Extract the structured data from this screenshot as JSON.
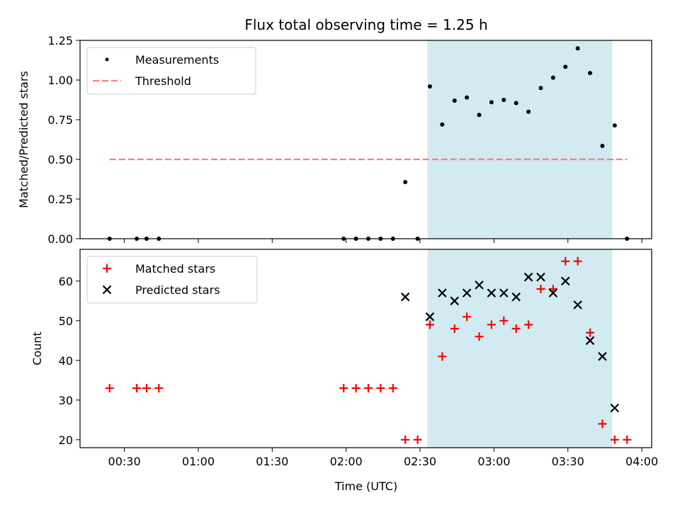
{
  "chart_data": [
    {
      "type": "scatter",
      "title": "Flux total observing time = 1.25 h",
      "xlabel": "",
      "ylabel": "Matched/Predicted stars",
      "ylim": [
        0,
        1.25
      ],
      "yticks": [
        "0.00",
        "0.25",
        "0.50",
        "0.75",
        "1.00",
        "1.25"
      ],
      "shaded_span": [
        "02:33",
        "03:48"
      ],
      "shade_color": "#add8e6",
      "legend_position": "upper-left",
      "series": [
        {
          "name": "Measurements",
          "marker": "dot",
          "color": "#000000",
          "points": [
            [
              "00:24",
              0
            ],
            [
              "00:35",
              0
            ],
            [
              "00:39",
              0
            ],
            [
              "00:44",
              0
            ],
            [
              "01:59",
              0
            ],
            [
              "02:04",
              0
            ],
            [
              "02:09",
              0
            ],
            [
              "02:14",
              0
            ],
            [
              "02:19",
              0
            ],
            [
              "02:24",
              0.357
            ],
            [
              "02:29",
              0
            ],
            [
              "02:34",
              0.96
            ],
            [
              "02:39",
              0.72
            ],
            [
              "02:44",
              0.87
            ],
            [
              "02:49",
              0.89
            ],
            [
              "02:54",
              0.78
            ],
            [
              "02:59",
              0.86
            ],
            [
              "03:04",
              0.875
            ],
            [
              "03:09",
              0.855
            ],
            [
              "03:14",
              0.8
            ],
            [
              "03:19",
              0.95
            ],
            [
              "03:24",
              1.015
            ],
            [
              "03:29",
              1.083
            ],
            [
              "03:34",
              1.2
            ],
            [
              "03:39",
              1.044
            ],
            [
              "03:44",
              0.585
            ],
            [
              "03:49",
              0.714
            ],
            [
              "03:54",
              0
            ]
          ]
        },
        {
          "name": "Threshold",
          "marker": "dashed-line",
          "color": "#ff7f7f",
          "value": 0.5,
          "x_range": [
            "00:24",
            "03:54"
          ]
        }
      ]
    },
    {
      "type": "scatter",
      "title": "",
      "xlabel": "Time (UTC)",
      "ylabel": "Count",
      "ylim": [
        18,
        68
      ],
      "yticks": [
        "20",
        "30",
        "40",
        "50",
        "60"
      ],
      "xlim": [
        "00:12",
        "04:04"
      ],
      "xticks": [
        "00:30",
        "01:00",
        "01:30",
        "02:00",
        "02:30",
        "03:00",
        "03:30",
        "04:00"
      ],
      "shaded_span": [
        "02:33",
        "03:48"
      ],
      "shade_color": "#add8e6",
      "legend_position": "upper-left",
      "series": [
        {
          "name": "Matched stars",
          "marker": "plus",
          "color": "#ff0000",
          "points": [
            [
              "00:24",
              33
            ],
            [
              "00:35",
              33
            ],
            [
              "00:39",
              33
            ],
            [
              "00:44",
              33
            ],
            [
              "01:59",
              33
            ],
            [
              "02:04",
              33
            ],
            [
              "02:09",
              33
            ],
            [
              "02:14",
              33
            ],
            [
              "02:19",
              33
            ],
            [
              "02:24",
              20
            ],
            [
              "02:29",
              20
            ],
            [
              "02:34",
              49
            ],
            [
              "02:39",
              41
            ],
            [
              "02:44",
              48
            ],
            [
              "02:49",
              51
            ],
            [
              "02:54",
              46
            ],
            [
              "02:59",
              49
            ],
            [
              "03:04",
              50
            ],
            [
              "03:09",
              48
            ],
            [
              "03:14",
              49
            ],
            [
              "03:19",
              58
            ],
            [
              "03:24",
              58
            ],
            [
              "03:29",
              65
            ],
            [
              "03:34",
              65
            ],
            [
              "03:39",
              47
            ],
            [
              "03:44",
              24
            ],
            [
              "03:49",
              20
            ],
            [
              "03:54",
              20
            ]
          ]
        },
        {
          "name": "Predicted stars",
          "marker": "x",
          "color": "#000000",
          "points": [
            [
              "02:24",
              56
            ],
            [
              "02:34",
              51
            ],
            [
              "02:39",
              57
            ],
            [
              "02:44",
              55
            ],
            [
              "02:49",
              57
            ],
            [
              "02:54",
              59
            ],
            [
              "02:59",
              57
            ],
            [
              "03:04",
              57
            ],
            [
              "03:09",
              56
            ],
            [
              "03:14",
              61
            ],
            [
              "03:19",
              61
            ],
            [
              "03:24",
              57
            ],
            [
              "03:29",
              60
            ],
            [
              "03:34",
              54
            ],
            [
              "03:39",
              45
            ],
            [
              "03:44",
              41
            ],
            [
              "03:49",
              28
            ]
          ]
        }
      ]
    }
  ]
}
